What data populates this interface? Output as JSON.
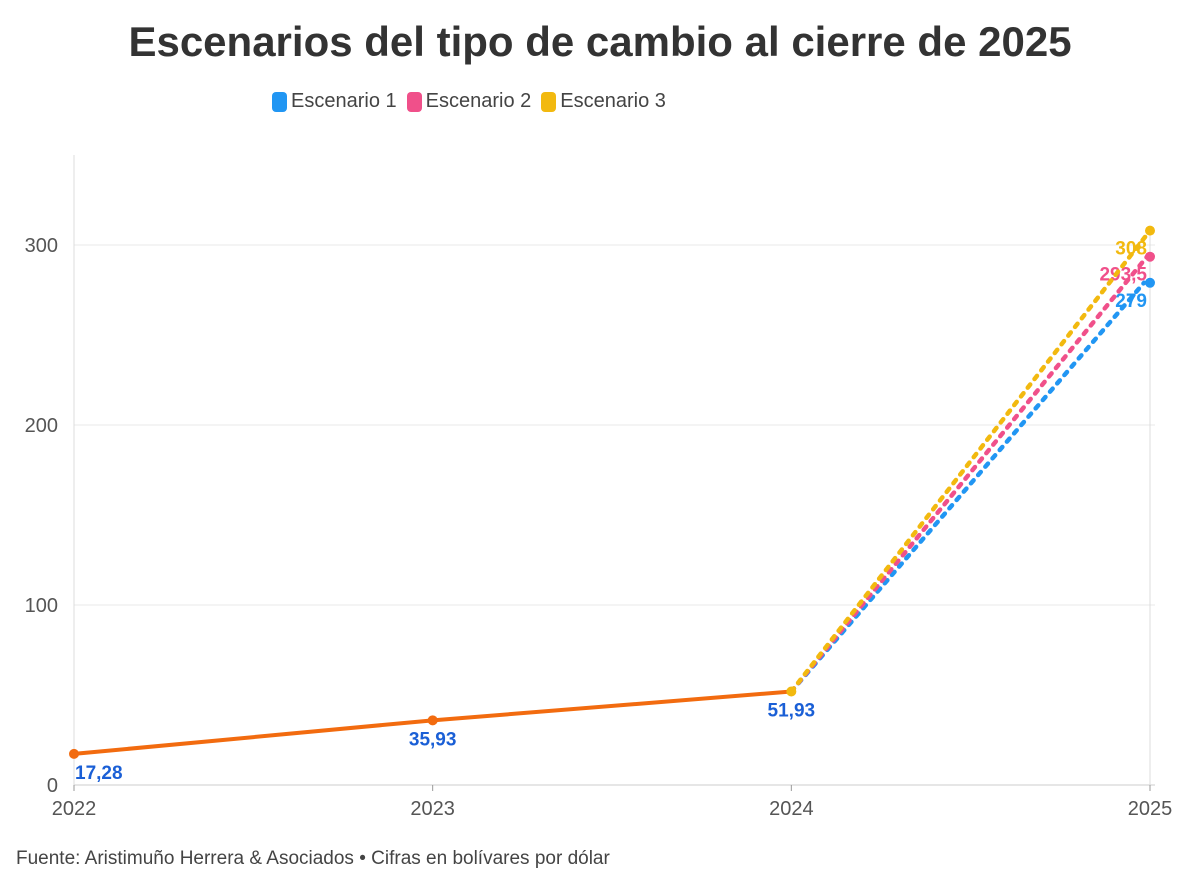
{
  "chart_data": {
    "type": "line",
    "title": "Escenarios del tipo de cambio al cierre de 2025",
    "x": [
      "2022",
      "2023",
      "2024",
      "2025"
    ],
    "ylim": [
      0,
      350
    ],
    "yticks": [
      0,
      100,
      200,
      300
    ],
    "grid": true,
    "legend_position": "top",
    "historical": {
      "color": "#f26b0f",
      "label_color": "#1a5fd6",
      "x": [
        "2022",
        "2023",
        "2024"
      ],
      "values": [
        17.28,
        35.93,
        51.93
      ],
      "labels": [
        "17,28",
        "35,93",
        "51,93"
      ]
    },
    "series": [
      {
        "name": "Escenario 1",
        "color": "#2196f3",
        "x": [
          "2024",
          "2025"
        ],
        "values": [
          51.93,
          279
        ],
        "label": "279"
      },
      {
        "name": "Escenario 2",
        "color": "#f0508a",
        "x": [
          "2024",
          "2025"
        ],
        "values": [
          51.93,
          293.5
        ],
        "label": "293,5"
      },
      {
        "name": "Escenario 3",
        "color": "#f2b90f",
        "x": [
          "2024",
          "2025"
        ],
        "values": [
          51.93,
          308
        ],
        "label": "308"
      }
    ]
  },
  "source": "Fuente: Aristimuño Herrera & Asociados • Cifras en bolívares por dólar"
}
